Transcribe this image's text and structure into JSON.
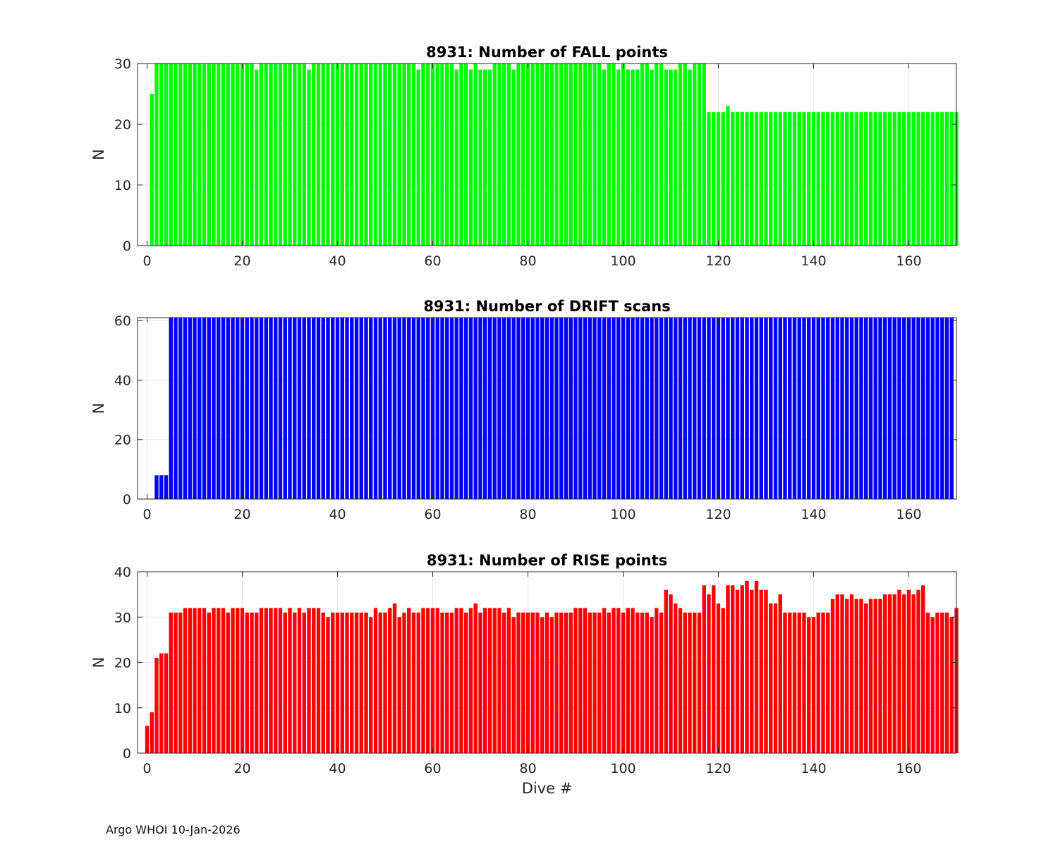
{
  "footer": "Argo WHOI 10-Jan-2026",
  "chart_data": [
    {
      "type": "bar",
      "title": "8931: Number of FALL points",
      "xlabel": "",
      "ylabel": "N",
      "xlim": [
        -2,
        170
      ],
      "ylim": [
        0,
        30
      ],
      "xticks": [
        0,
        20,
        40,
        60,
        80,
        100,
        120,
        140,
        160
      ],
      "yticks": [
        0,
        10,
        20,
        30
      ],
      "color": "#00ff00",
      "grid": true,
      "x_start": 1,
      "values": [
        25,
        30,
        30,
        30,
        30,
        30,
        30,
        30,
        30,
        30,
        30,
        30,
        30,
        30,
        30,
        30,
        30,
        30,
        30,
        30,
        30,
        30,
        29,
        30,
        30,
        30,
        30,
        30,
        30,
        30,
        30,
        30,
        30,
        29,
        30,
        30,
        30,
        30,
        30,
        30,
        30,
        30,
        30,
        30,
        30,
        30,
        30,
        30,
        30,
        30,
        30,
        30,
        30,
        30,
        30,
        30,
        29,
        30,
        30,
        30,
        30,
        30,
        30,
        30,
        29,
        30,
        30,
        29,
        30,
        29,
        29,
        29,
        30,
        30,
        30,
        30,
        29,
        30,
        30,
        30,
        30,
        30,
        30,
        30,
        30,
        30,
        30,
        30,
        30,
        30,
        30,
        30,
        30,
        30,
        30,
        29,
        30,
        30,
        29,
        30,
        29,
        29,
        29,
        30,
        30,
        29,
        30,
        30,
        29,
        29,
        29,
        30,
        30,
        29,
        30,
        30,
        30,
        22,
        22,
        22,
        22,
        23,
        22,
        22,
        22,
        22,
        22,
        22,
        22,
        22,
        22,
        22,
        22,
        22,
        22,
        22,
        22,
        22,
        22,
        22,
        22,
        22,
        22,
        22,
        22,
        22,
        22,
        22,
        22,
        22,
        22,
        22,
        22,
        22,
        22,
        22,
        22,
        22,
        22,
        22,
        22,
        22,
        22,
        22,
        22,
        22,
        22,
        22,
        22,
        22
      ]
    },
    {
      "type": "bar",
      "title": "8931: Number of DRIFT scans",
      "xlabel": "",
      "ylabel": "N",
      "xlim": [
        -2,
        170
      ],
      "ylim": [
        0,
        61
      ],
      "xticks": [
        0,
        20,
        40,
        60,
        80,
        100,
        120,
        140,
        160
      ],
      "yticks": [
        0,
        20,
        40,
        60
      ],
      "color": "#0000ff",
      "grid": true,
      "x_start": 1,
      "values": [
        0,
        8,
        8,
        8,
        61,
        61,
        61,
        61,
        61,
        61,
        61,
        61,
        61,
        61,
        61,
        61,
        61,
        61,
        61,
        61,
        61,
        61,
        61,
        61,
        61,
        61,
        61,
        61,
        61,
        61,
        61,
        61,
        61,
        61,
        61,
        61,
        61,
        61,
        61,
        61,
        61,
        61,
        61,
        61,
        61,
        61,
        61,
        61,
        61,
        61,
        61,
        61,
        61,
        61,
        61,
        61,
        61,
        61,
        61,
        61,
        61,
        61,
        61,
        61,
        61,
        61,
        61,
        61,
        61,
        61,
        61,
        61,
        61,
        61,
        61,
        61,
        61,
        61,
        61,
        61,
        61,
        61,
        61,
        61,
        61,
        61,
        61,
        61,
        61,
        61,
        61,
        61,
        61,
        61,
        61,
        61,
        61,
        61,
        61,
        61,
        61,
        61,
        61,
        61,
        61,
        61,
        61,
        61,
        61,
        61,
        61,
        61,
        61,
        61,
        61,
        61,
        61,
        61,
        61,
        61,
        61,
        61,
        61,
        61,
        61,
        61,
        61,
        61,
        61,
        61,
        61,
        61,
        61,
        61,
        61,
        61,
        61,
        61,
        61,
        61,
        61,
        61,
        61,
        61,
        61,
        61,
        61,
        61,
        61,
        61,
        61,
        61,
        61,
        61,
        61,
        61,
        61,
        61,
        61,
        61,
        61,
        61,
        61,
        61,
        61,
        61,
        61,
        61,
        61
      ]
    },
    {
      "type": "bar",
      "title": "8931: Number of RISE points",
      "xlabel": "Dive #",
      "ylabel": "N",
      "xlim": [
        -2,
        170
      ],
      "ylim": [
        0,
        40
      ],
      "xticks": [
        0,
        20,
        40,
        60,
        80,
        100,
        120,
        140,
        160
      ],
      "yticks": [
        0,
        10,
        20,
        30,
        40
      ],
      "color": "#ff0000",
      "grid": true,
      "x_start": 0,
      "values": [
        6,
        9,
        21,
        22,
        22,
        31,
        31,
        31,
        32,
        32,
        32,
        32,
        32,
        31,
        32,
        32,
        32,
        31,
        32,
        32,
        32,
        31,
        31,
        31,
        32,
        32,
        32,
        32,
        32,
        31,
        32,
        31,
        32,
        31,
        32,
        32,
        32,
        31,
        30,
        31,
        31,
        31,
        31,
        31,
        31,
        31,
        31,
        30,
        32,
        31,
        31,
        32,
        33,
        30,
        31,
        32,
        31,
        31,
        32,
        32,
        32,
        32,
        31,
        31,
        31,
        32,
        32,
        31,
        32,
        33,
        31,
        32,
        32,
        32,
        32,
        31,
        32,
        30,
        31,
        31,
        31,
        31,
        31,
        30,
        31,
        30,
        31,
        31,
        31,
        31,
        32,
        32,
        32,
        31,
        31,
        31,
        32,
        31,
        32,
        32,
        31,
        32,
        32,
        31,
        31,
        31,
        30,
        32,
        31,
        36,
        35,
        33,
        32,
        31,
        31,
        31,
        31,
        37,
        35,
        37,
        33,
        32,
        37,
        37,
        36,
        37,
        38,
        36,
        38,
        36,
        36,
        33,
        33,
        35,
        31,
        31,
        31,
        31,
        31,
        30,
        30,
        31,
        31,
        31,
        34,
        35,
        35,
        34,
        35,
        34,
        34,
        33,
        34,
        34,
        34,
        35,
        35,
        35,
        36,
        35,
        36,
        35,
        36,
        37,
        31,
        30,
        31,
        31,
        31,
        30,
        32
      ]
    }
  ]
}
